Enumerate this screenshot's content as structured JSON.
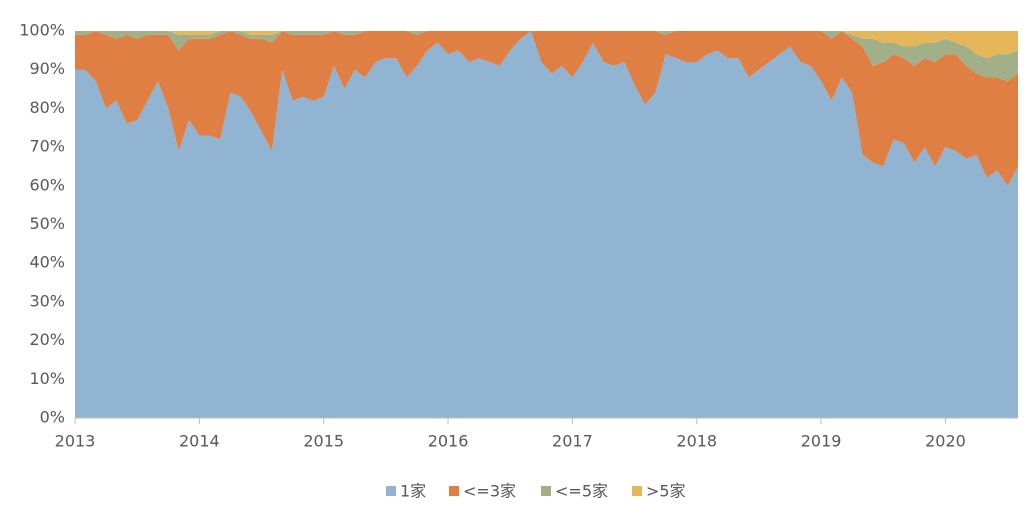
{
  "chart_data": {
    "type": "stacked_area",
    "categories": [
      "2013",
      null,
      null,
      null,
      null,
      null,
      null,
      null,
      null,
      null,
      null,
      null,
      "2014",
      null,
      null,
      null,
      null,
      null,
      null,
      null,
      null,
      null,
      null,
      null,
      "2015",
      null,
      null,
      null,
      null,
      null,
      null,
      null,
      null,
      null,
      null,
      null,
      "2016",
      null,
      null,
      null,
      null,
      null,
      null,
      null,
      null,
      null,
      null,
      null,
      "2017",
      null,
      null,
      null,
      null,
      null,
      null,
      null,
      null,
      null,
      null,
      null,
      "2018",
      null,
      null,
      null,
      null,
      null,
      null,
      null,
      null,
      null,
      null,
      null,
      "2019",
      null,
      null,
      null,
      null,
      null,
      null,
      null,
      null,
      null,
      null,
      null,
      "2020",
      null,
      null,
      null,
      null,
      null,
      null,
      null
    ],
    "series": [
      {
        "name": "1家",
        "color": "#91b4d2",
        "values": [
          90,
          90,
          87,
          80,
          82,
          76,
          77,
          82,
          87,
          80,
          69,
          77,
          73,
          73,
          72,
          84,
          83,
          79,
          74,
          69,
          90,
          82,
          83,
          82,
          83,
          91,
          85,
          90,
          88,
          92,
          93,
          93,
          88,
          91,
          95,
          97,
          94,
          95,
          92,
          93,
          92,
          91,
          95,
          98,
          100,
          92,
          89,
          91,
          88,
          92,
          97,
          92,
          91,
          92,
          86,
          81,
          84,
          94,
          93,
          92,
          92,
          94,
          95,
          93,
          93,
          88,
          90,
          92,
          94,
          96,
          92,
          91,
          87,
          82,
          88,
          84,
          68,
          66,
          65,
          72,
          71,
          66,
          70,
          65,
          70,
          69,
          67,
          68,
          62,
          64,
          60,
          65
        ]
      },
      {
        "name": "<=3家",
        "color": "#e07f44",
        "values": [
          9,
          9,
          13,
          19,
          16,
          23,
          21,
          17,
          12,
          19,
          26,
          21,
          25,
          25,
          27,
          16,
          16,
          19,
          24,
          28,
          10,
          17,
          16,
          17,
          16,
          9,
          14,
          9,
          12,
          8,
          7,
          7,
          12,
          8,
          5,
          3,
          6,
          5,
          8,
          7,
          8,
          9,
          5,
          2,
          0,
          8,
          11,
          9,
          12,
          8,
          3,
          8,
          9,
          8,
          14,
          19,
          16,
          5,
          7,
          8,
          8,
          6,
          5,
          7,
          7,
          12,
          10,
          8,
          6,
          4,
          8,
          9,
          13,
          16,
          12,
          14,
          28,
          25,
          27,
          22,
          22,
          25,
          23,
          27,
          24,
          25,
          24,
          21,
          26,
          24,
          27,
          24
        ]
      },
      {
        "name": "<=5家",
        "color": "#a2b08a",
        "values": [
          1,
          1,
          0,
          1,
          2,
          1,
          2,
          1,
          1,
          1,
          4,
          1,
          1,
          1,
          1,
          0,
          1,
          1,
          1,
          2,
          0,
          1,
          1,
          1,
          1,
          0,
          1,
          1,
          0,
          0,
          0,
          0,
          0,
          1,
          0,
          0,
          0,
          0,
          0,
          0,
          0,
          0,
          0,
          0,
          0,
          0,
          0,
          0,
          0,
          0,
          0,
          0,
          0,
          0,
          0,
          0,
          0,
          1,
          0,
          0,
          0,
          0,
          0,
          0,
          0,
          0,
          0,
          0,
          0,
          0,
          0,
          0,
          0,
          2,
          0,
          1,
          2,
          7,
          5,
          3,
          3,
          5,
          4,
          5,
          4,
          3,
          5,
          5,
          5,
          6,
          7,
          6
        ]
      },
      {
        "name": ">5家",
        "color": "#e5b65a",
        "values": [
          0,
          0,
          0,
          0,
          0,
          0,
          0,
          0,
          0,
          0,
          1,
          1,
          1,
          1,
          0,
          0,
          0,
          1,
          1,
          1,
          0,
          0,
          0,
          0,
          0,
          0,
          0,
          0,
          0,
          0,
          0,
          0,
          0,
          0,
          0,
          0,
          0,
          0,
          0,
          0,
          0,
          0,
          0,
          0,
          0,
          0,
          0,
          0,
          0,
          0,
          0,
          0,
          0,
          0,
          0,
          0,
          0,
          0,
          0,
          0,
          0,
          0,
          0,
          0,
          0,
          0,
          0,
          0,
          0,
          0,
          0,
          0,
          0,
          0,
          0,
          1,
          2,
          2,
          3,
          3,
          4,
          4,
          3,
          3,
          2,
          3,
          4,
          6,
          7,
          6,
          6,
          5
        ]
      }
    ],
    "ylim": [
      0,
      100
    ],
    "yticks": [
      {
        "value": 0,
        "label": "0%"
      },
      {
        "value": 10,
        "label": "10%"
      },
      {
        "value": 20,
        "label": "20%"
      },
      {
        "value": 30,
        "label": "30%"
      },
      {
        "value": 40,
        "label": "40%"
      },
      {
        "value": 50,
        "label": "50%"
      },
      {
        "value": 60,
        "label": "60%"
      },
      {
        "value": 70,
        "label": "70%"
      },
      {
        "value": 80,
        "label": "80%"
      },
      {
        "value": 90,
        "label": "90%"
      },
      {
        "value": 100,
        "label": "100%"
      }
    ],
    "legend": "bottom"
  }
}
